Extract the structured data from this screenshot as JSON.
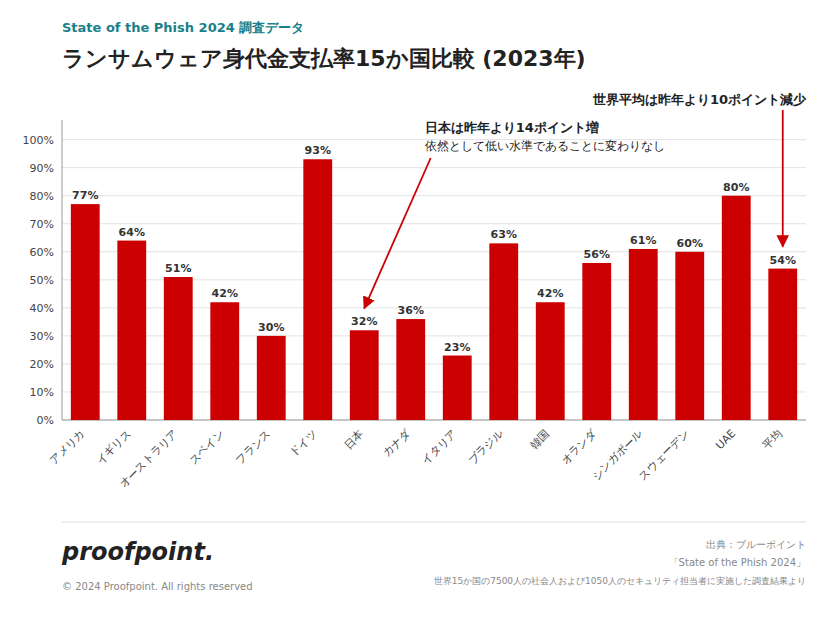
{
  "chart_data": {
    "type": "bar",
    "subtitle": "State of the Phish 2024 調査データ",
    "title": "ランサムウェア身代金支払率15か国比較 (2023年)",
    "categories": [
      "アメリカ",
      "イギリス",
      "オーストラリア",
      "スペイン",
      "フランス",
      "ドイツ",
      "日本",
      "カナダ",
      "イタリア",
      "ブラジル",
      "韓国",
      "オランダ",
      "シンガポール",
      "スウェーデン",
      "UAE",
      "平均"
    ],
    "values": [
      77,
      64,
      51,
      42,
      30,
      93,
      32,
      36,
      23,
      63,
      42,
      56,
      61,
      60,
      80,
      54
    ],
    "value_labels": [
      "77%",
      "64%",
      "51%",
      "42%",
      "30%",
      "93%",
      "32%",
      "36%",
      "23%",
      "63%",
      "42%",
      "56%",
      "61%",
      "60%",
      "80%",
      "54%"
    ],
    "data_labels": true,
    "color": "#cc0000",
    "ylim": [
      0,
      107
    ],
    "yticks": [
      {
        "value": 0,
        "label": "0%"
      },
      {
        "value": 10,
        "label": "10%"
      },
      {
        "value": 20,
        "label": "20%"
      },
      {
        "value": 30,
        "label": "30%"
      },
      {
        "value": 40,
        "label": "40%"
      },
      {
        "value": 50,
        "label": "50%"
      },
      {
        "value": 60,
        "label": "60%"
      },
      {
        "value": 70,
        "label": "70%"
      },
      {
        "value": 80,
        "label": "80%"
      },
      {
        "value": 90,
        "label": "90%"
      },
      {
        "value": 100,
        "label": "100%"
      }
    ],
    "grid": true,
    "annotations": [
      {
        "category": "日本",
        "lines": [
          "日本は昨年より14ポイント増",
          "依然として低い水準であることに変わりなし"
        ]
      },
      {
        "category": "平均",
        "lines": [
          "世界平均は昨年より10ポイント減少"
        ]
      }
    ],
    "footer": [
      "proofpoint.",
      "© 2024 Proofpoint. All rights reserved"
    ],
    "source": [
      "出典：ブルーポイント",
      "「State of the Phish 2024」",
      "世界15か国の7500人の社会人および1050人のセキュリティ担当者に実施した調査結果より"
    ]
  }
}
